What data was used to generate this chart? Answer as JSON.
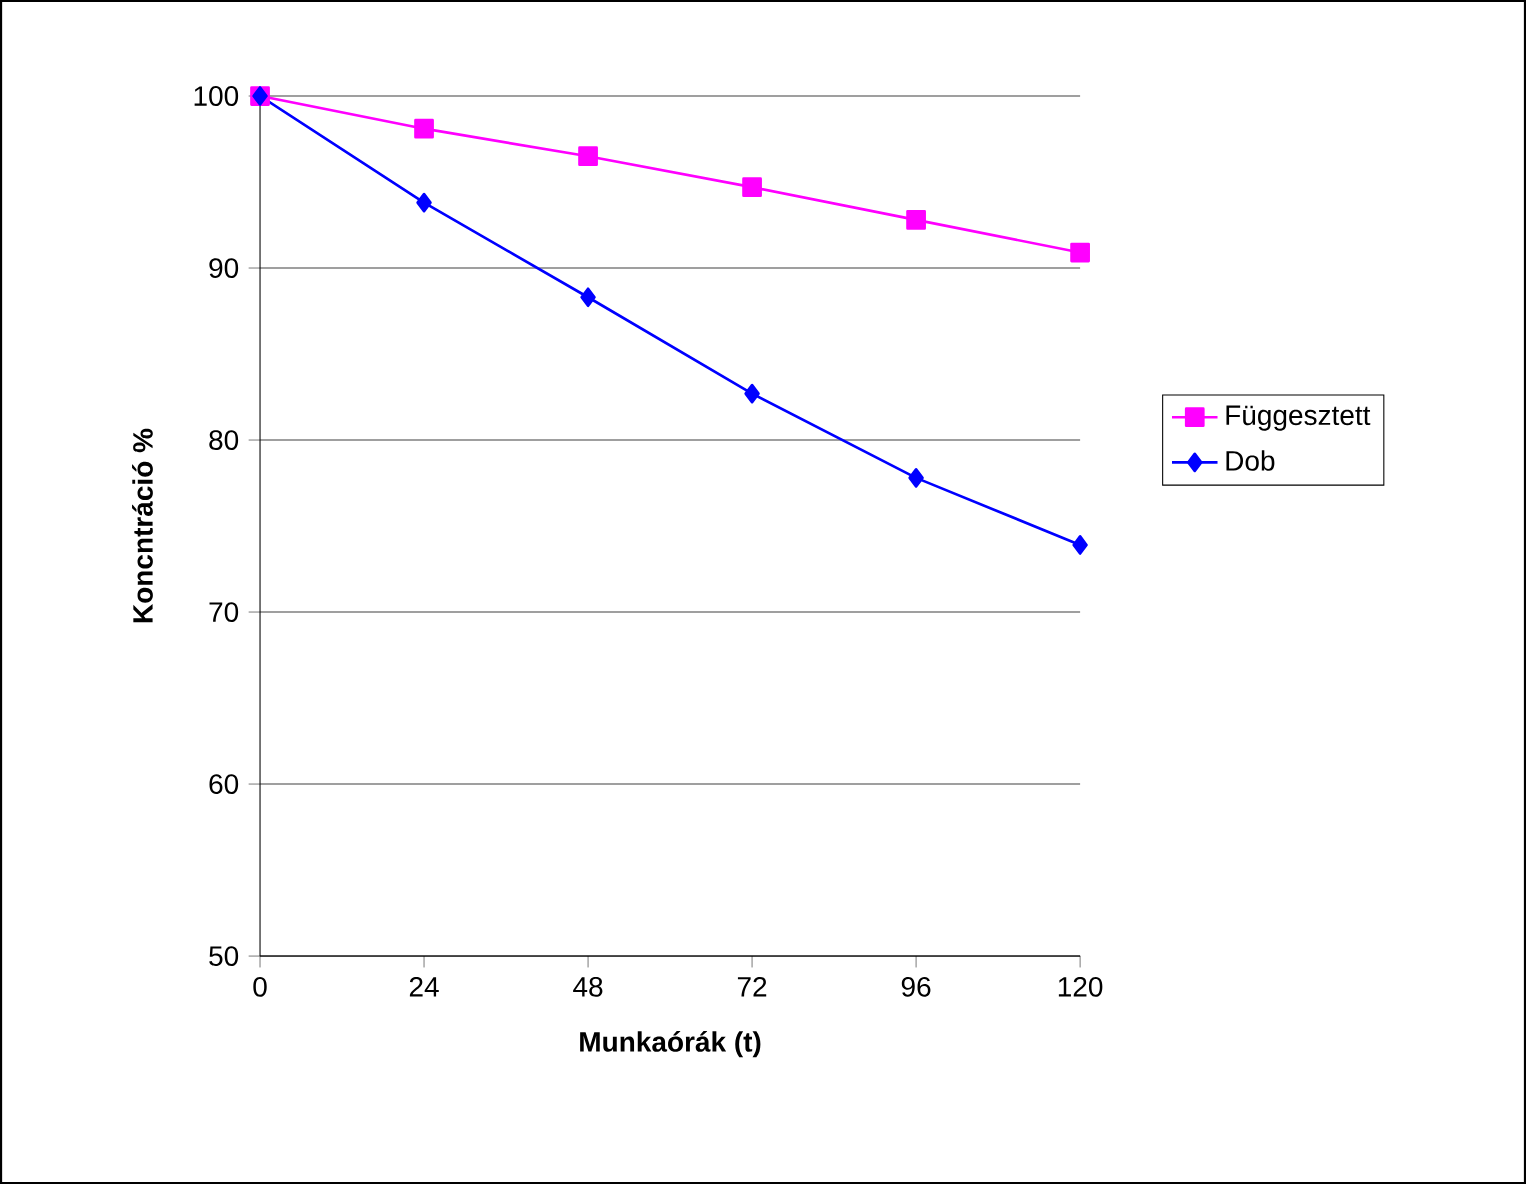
{
  "chart_data": {
    "type": "line",
    "xlabel": "Munkaórák (t)",
    "ylabel": "Koncntráció %",
    "x": [
      0,
      24,
      48,
      72,
      96,
      120
    ],
    "series": [
      {
        "name": "Függesztett",
        "color": "#ff00ff",
        "marker": "square",
        "values": [
          100,
          98.1,
          96.5,
          94.7,
          92.8,
          90.9
        ]
      },
      {
        "name": "Dob",
        "color": "#0000ff",
        "marker": "diamond",
        "values": [
          100,
          93.8,
          88.3,
          82.7,
          77.8,
          73.9
        ]
      }
    ],
    "xlim": [
      0,
      120
    ],
    "xticks": [
      0,
      24,
      48,
      72,
      96,
      120
    ],
    "ylim": [
      50,
      100
    ],
    "yticks": [
      50,
      60,
      70,
      80,
      90,
      100
    ],
    "grid": "y",
    "legend": "right",
    "line_style": "solid"
  }
}
